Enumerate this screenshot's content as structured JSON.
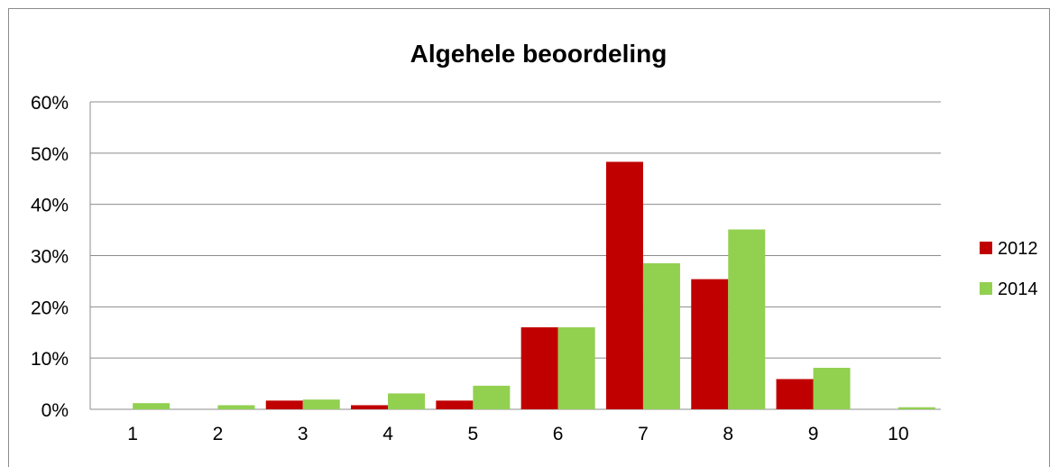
{
  "chart_data": {
    "type": "bar",
    "title": "Algehele beoordeling",
    "xlabel": "",
    "ylabel": "",
    "categories": [
      "1",
      "2",
      "3",
      "4",
      "5",
      "6",
      "7",
      "8",
      "9",
      "10"
    ],
    "series": [
      {
        "name": "2012",
        "color": "#c00000",
        "values": [
          0,
          0,
          1.7,
          0.8,
          1.7,
          16.0,
          48.3,
          25.4,
          5.9,
          0
        ]
      },
      {
        "name": "2014",
        "color": "#92d050",
        "values": [
          1.2,
          0.8,
          1.9,
          3.1,
          4.6,
          16.0,
          28.5,
          35.1,
          8.1,
          0.4
        ]
      }
    ],
    "ylim": [
      0,
      60
    ],
    "yticks": [
      0,
      10,
      20,
      30,
      40,
      50,
      60
    ],
    "ytick_labels": [
      "0%",
      "10%",
      "20%",
      "30%",
      "40%",
      "50%",
      "60%"
    ],
    "grid": true,
    "legend": "right"
  }
}
